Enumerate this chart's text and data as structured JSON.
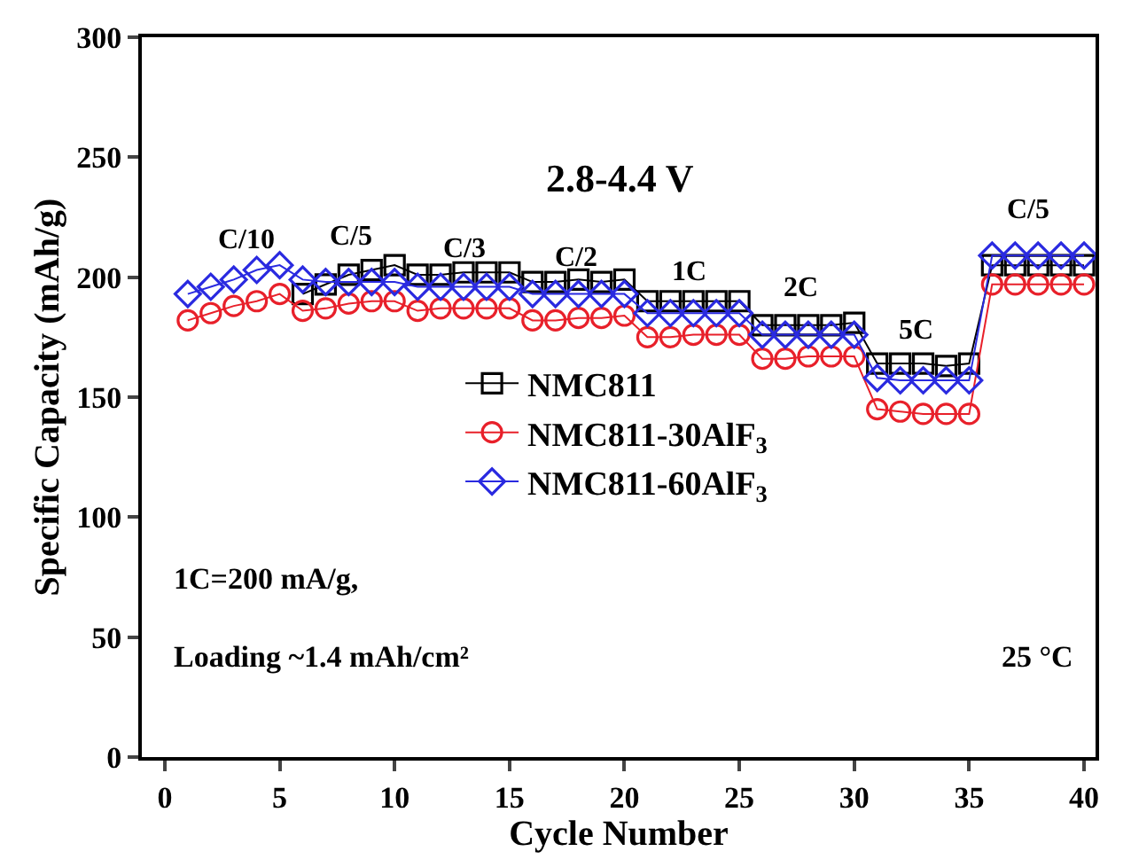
{
  "chart_data": {
    "type": "line",
    "xlabel": "Cycle Number",
    "ylabel": "Specific Capacity (mAh/g)",
    "x": [
      1,
      2,
      3,
      4,
      5,
      6,
      7,
      8,
      9,
      10,
      11,
      12,
      13,
      14,
      15,
      16,
      17,
      18,
      19,
      20,
      21,
      22,
      23,
      24,
      25,
      26,
      27,
      28,
      29,
      30,
      31,
      32,
      33,
      34,
      35,
      36,
      37,
      38,
      39,
      40
    ],
    "series": [
      {
        "name": "NMC811",
        "color": "#000000",
        "marker": "square",
        "values": [
          null,
          null,
          null,
          null,
          null,
          193,
          197,
          201,
          203,
          205,
          201,
          201,
          202,
          202,
          202,
          198,
          198,
          199,
          198,
          199,
          190,
          190,
          190,
          190,
          190,
          180,
          180,
          180,
          180,
          181,
          164,
          164,
          164,
          163,
          164,
          205,
          205,
          205,
          205,
          205
        ]
      },
      {
        "name": "NMC811-30AlF$_{3}$",
        "color": "#e8202a",
        "marker": "circle",
        "values": [
          182,
          185,
          188,
          190,
          193,
          186,
          187,
          189,
          190,
          190,
          186,
          187,
          187,
          187,
          187,
          182,
          182,
          183,
          183,
          184,
          175,
          175,
          176,
          176,
          176,
          166,
          166,
          167,
          167,
          167,
          145,
          144,
          143,
          143,
          143,
          197,
          197,
          197,
          197,
          197
        ]
      },
      {
        "name": "NMC811-60AlF$_{3}$",
        "color": "#2a2ae0",
        "marker": "diamond",
        "values": [
          193,
          196,
          199,
          203,
          205,
          199,
          198,
          198,
          198,
          198,
          196,
          196,
          196,
          196,
          196,
          193,
          193,
          193,
          193,
          193,
          185,
          185,
          185,
          185,
          185,
          176,
          176,
          176,
          176,
          176,
          158,
          157,
          157,
          157,
          157,
          209,
          209,
          209,
          209,
          209
        ]
      }
    ],
    "xlim": [
      -1,
      40.5
    ],
    "ylim": [
      0,
      300
    ],
    "xticks": [
      0,
      5,
      10,
      15,
      20,
      25,
      30,
      35,
      40
    ],
    "yticks": [
      0,
      50,
      100,
      150,
      200,
      250,
      300
    ],
    "legend": "center",
    "line_style": "solid",
    "annotations": [
      "C/10",
      "C/5",
      "C/3",
      "C/2",
      "1C",
      "2C",
      "5C",
      "C/5",
      "2.8-4.4 V",
      "1C=200 mA/g,",
      "Loading ~1.4 mAh/cm²",
      "25 °C"
    ]
  }
}
